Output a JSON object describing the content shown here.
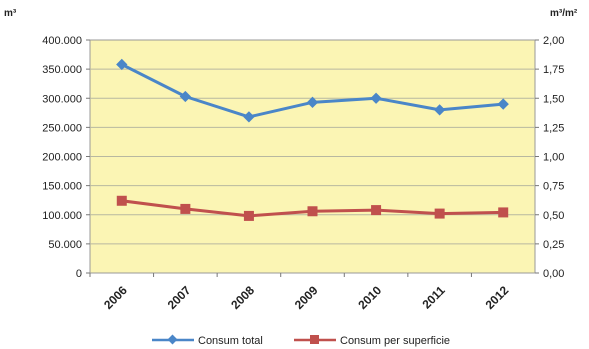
{
  "chart_data": {
    "type": "line",
    "title": "",
    "xlabel": "",
    "ylabel_left_unit": "m³",
    "ylabel_right_unit": "m³/m²",
    "categories": [
      "2006",
      "2007",
      "2008",
      "2009",
      "2010",
      "2011",
      "2012"
    ],
    "y_left": {
      "lim": [
        0,
        400000
      ],
      "ticks": [
        0,
        50000,
        100000,
        150000,
        200000,
        250000,
        300000,
        350000,
        400000
      ],
      "tick_labels": [
        "0",
        "50.000",
        "100.000",
        "150.000",
        "200.000",
        "250.000",
        "300.000",
        "350.000",
        "400.000"
      ]
    },
    "y_right": {
      "lim": [
        0,
        2
      ],
      "ticks": [
        0,
        0.25,
        0.5,
        0.75,
        1,
        1.25,
        1.5,
        1.75,
        2
      ],
      "tick_labels": [
        "0,00",
        "0,25",
        "0,50",
        "0,75",
        "1,00",
        "1,25",
        "1,50",
        "1,75",
        "2,00"
      ]
    },
    "series": [
      {
        "name": "Consum total",
        "axis": "left",
        "color": "#4a86c8",
        "marker": "diamond",
        "values": [
          358000,
          303000,
          268000,
          293000,
          300000,
          280000,
          290000
        ]
      },
      {
        "name": "Consum per superficie",
        "axis": "right",
        "color": "#c0504d",
        "marker": "square",
        "values": [
          0.62,
          0.55,
          0.49,
          0.53,
          0.54,
          0.51,
          0.52
        ]
      }
    ],
    "plot_background": "#fbf5b4",
    "grid": true,
    "legend_position": "bottom"
  }
}
